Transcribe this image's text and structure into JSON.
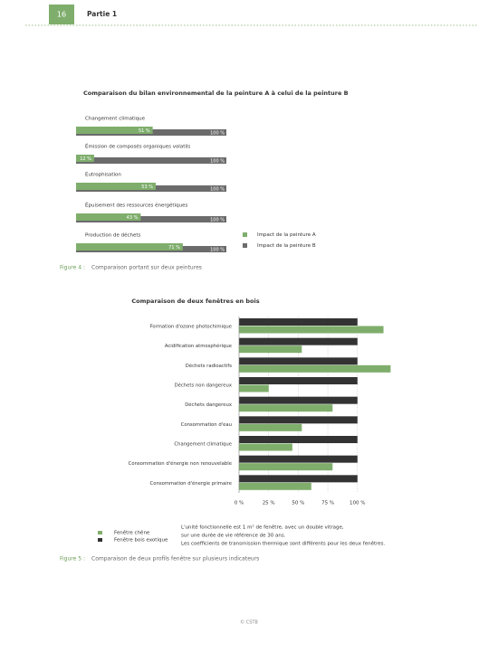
{
  "header": {
    "page_number": "16",
    "part": "Partie 1"
  },
  "chart_data": [
    {
      "type": "bar",
      "orientation": "horizontal",
      "title": "Comparaison du bilan environnemental de la peinture A à celui de la peinture B",
      "categories": [
        "Changement climatique",
        "Émission de composés organiques volatils",
        "Eutrophisation",
        "Épuisement des ressources énergétiques",
        "Production de déchets"
      ],
      "series": [
        {
          "name": "Impact de la peinture A",
          "color": "#7fae6c",
          "values": [
            51,
            12,
            53,
            43,
            71
          ],
          "value_labels": [
            "51 %",
            "12 %",
            "53 %",
            "43 %",
            "71 %"
          ]
        },
        {
          "name": "Impact de la peinture B",
          "color": "#6b6b6b",
          "values": [
            100,
            100,
            100,
            100,
            100
          ],
          "value_labels": [
            "100 %",
            "100 %",
            "100 %",
            "100 %",
            "100 %"
          ]
        }
      ],
      "xlim": [
        0,
        100
      ]
    },
    {
      "type": "bar",
      "orientation": "horizontal",
      "title": "Comparaison de deux fenêtres en bois",
      "categories": [
        "Formation d'ozone photochimique",
        "Acidification atmosphérique",
        "Déchets radioactifs",
        "Déchets non dangereux",
        "Déchets dangereux",
        "Consommation d'eau",
        "Changement climatique",
        "Consommation d'énergie non renouvelable",
        "Consommation d'énergie primaire"
      ],
      "series": [
        {
          "name": "Fenêtre bois exotique",
          "color": "#333333",
          "values": [
            100,
            100,
            100,
            100,
            100,
            100,
            100,
            100,
            100
          ]
        },
        {
          "name": "Fenêtre chêne",
          "color": "#7fae6c",
          "values": [
            122,
            53,
            128,
            25,
            79,
            53,
            45,
            79,
            61
          ]
        }
      ],
      "xlim": [
        0,
        130
      ],
      "xticks": [
        {
          "value": 0,
          "label": "0 %"
        },
        {
          "value": 25,
          "label": "25 %"
        },
        {
          "value": 50,
          "label": "50 %"
        },
        {
          "value": 75,
          "label": "75 %"
        },
        {
          "value": 100,
          "label": "100 %"
        }
      ],
      "grid": true,
      "notes": [
        "L'unité fonctionnelle est 1 m² de fenêtre, avec un double vitrage,",
        "sur une durée de vie référence de 30 ans.",
        "Les coefficients de transmission thermique sont différents pour les deux fenêtres."
      ]
    }
  ],
  "captions": [
    {
      "label": "Figure 4 :",
      "text": "Comparaison portant sur deux peintures"
    },
    {
      "label": "Figure 5 :",
      "text": "Comparaison de deux profils fenêtre sur plusieurs indicateurs"
    }
  ],
  "footer": "© CSTB"
}
